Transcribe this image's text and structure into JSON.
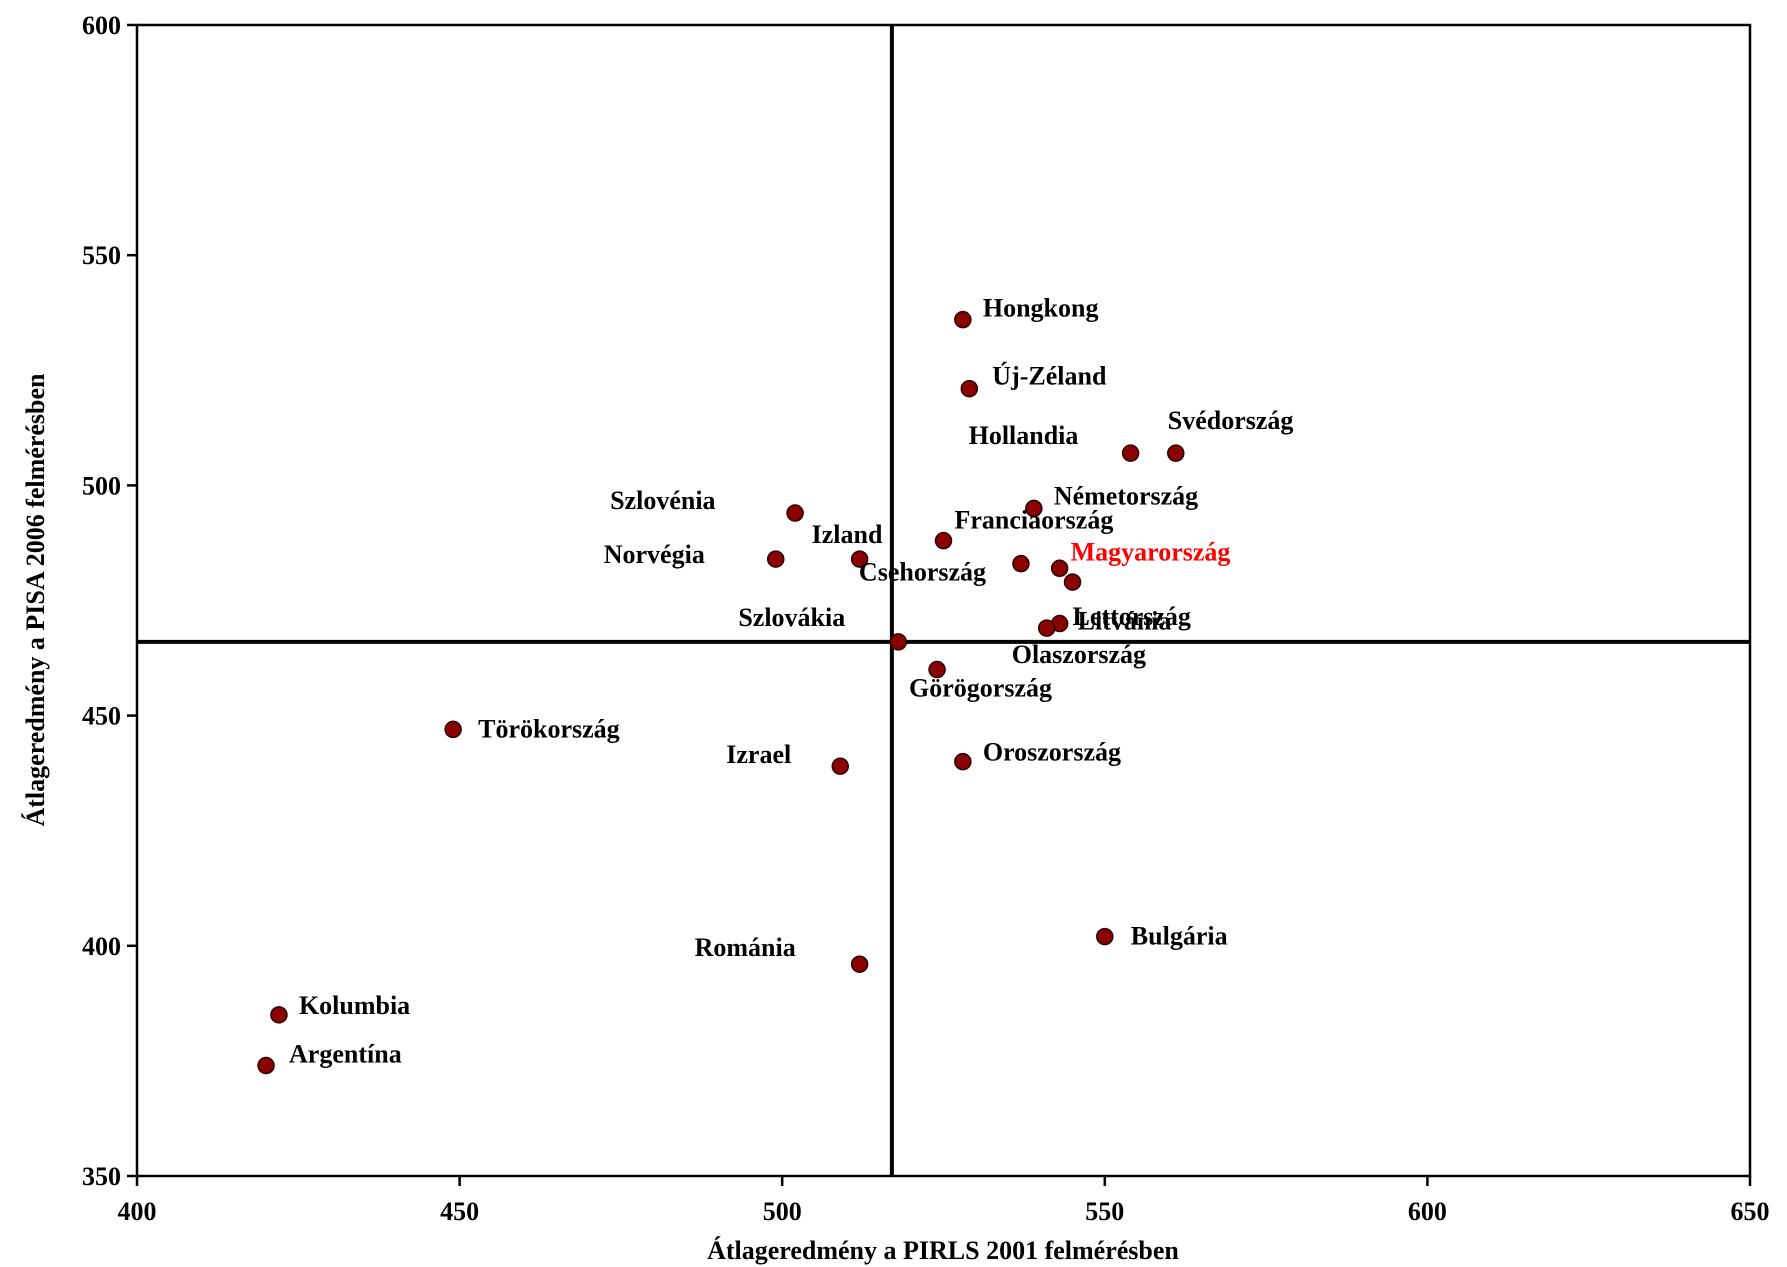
{
  "chart_data": {
    "type": "scatter",
    "xlabel": "Átlageredmény a PIRLS 2001 felmérésben",
    "ylabel": "Átlageredmény a PISA 2006 felmérésben",
    "xlim": [
      400,
      650
    ],
    "ylim": [
      350,
      600
    ],
    "xticks": [
      "400",
      "450",
      "500",
      "550",
      "600",
      "650"
    ],
    "yticks": [
      "350",
      "400",
      "450",
      "500",
      "550",
      "600"
    ],
    "reference_lines": {
      "x": 517,
      "y": 466
    },
    "grid": false,
    "marker_color": "#8b0000",
    "highlight_color": "#ff0000",
    "points": [
      {
        "label": "Hongkong",
        "x": 528,
        "y": 536
      },
      {
        "label": "Új-Zéland",
        "x": 529,
        "y": 521
      },
      {
        "label": "Svédország",
        "x": 561,
        "y": 507
      },
      {
        "label": "Hollandia",
        "x": 554,
        "y": 507
      },
      {
        "label": "Németország",
        "x": 539,
        "y": 495
      },
      {
        "label": "Franciaország",
        "x": 525,
        "y": 488
      },
      {
        "label": "Magyarország",
        "x": 543,
        "y": 482,
        "highlight": true
      },
      {
        "label": "Csehország",
        "x": 537,
        "y": 483
      },
      {
        "label": "Lettország",
        "x": 545,
        "y": 479
      },
      {
        "label": "Litvánia",
        "x": 543,
        "y": 470
      },
      {
        "label": "Olaszország",
        "x": 541,
        "y": 469
      },
      {
        "label": "Szlovénia",
        "x": 502,
        "y": 494
      },
      {
        "label": "Izland",
        "x": 512,
        "y": 484
      },
      {
        "label": "Norvégia",
        "x": 499,
        "y": 484
      },
      {
        "label": "Szlovákia",
        "x": 518,
        "y": 466
      },
      {
        "label": "Görögország",
        "x": 524,
        "y": 460
      },
      {
        "label": "Törökország",
        "x": 449,
        "y": 447
      },
      {
        "label": "Izrael",
        "x": 509,
        "y": 439
      },
      {
        "label": "Oroszország",
        "x": 528,
        "y": 440
      },
      {
        "label": "Bulgária",
        "x": 550,
        "y": 402
      },
      {
        "label": "Románia",
        "x": 512,
        "y": 396
      },
      {
        "label": "Kolumbia",
        "x": 422,
        "y": 385
      },
      {
        "label": "Argentína",
        "x": 420,
        "y": 374
      }
    ]
  }
}
